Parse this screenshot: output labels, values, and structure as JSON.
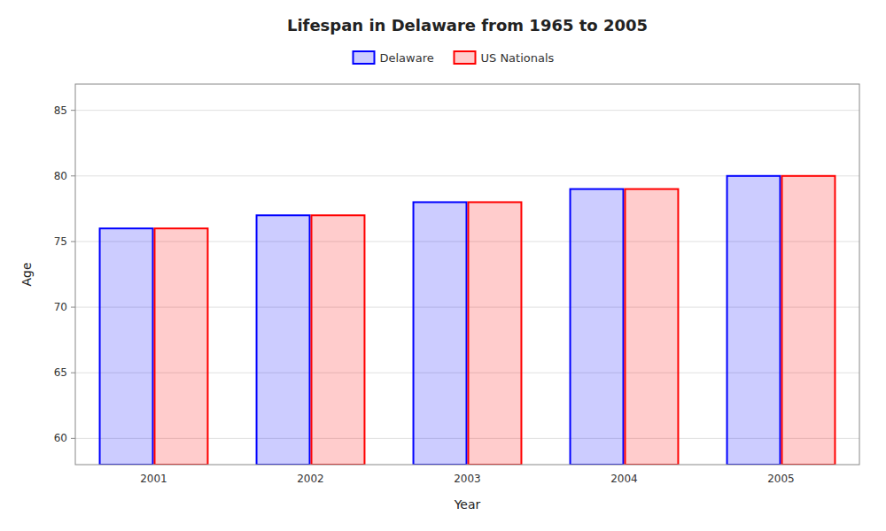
{
  "chart_data": {
    "type": "bar",
    "title": "Lifespan in Delaware from 1965 to 2005",
    "xlabel": "Year",
    "ylabel": "Age",
    "categories": [
      "2001",
      "2002",
      "2003",
      "2004",
      "2005"
    ],
    "series": [
      {
        "name": "Delaware",
        "color": "#0000ff",
        "values": [
          76,
          77,
          78,
          79,
          80
        ]
      },
      {
        "name": "US Nationals",
        "color": "#ff0000",
        "values": [
          76,
          77,
          78,
          79,
          80
        ]
      }
    ],
    "ylim": [
      58,
      87
    ],
    "yticks": [
      60,
      65,
      70,
      75,
      80,
      85
    ],
    "grid": true,
    "legend": "top"
  }
}
